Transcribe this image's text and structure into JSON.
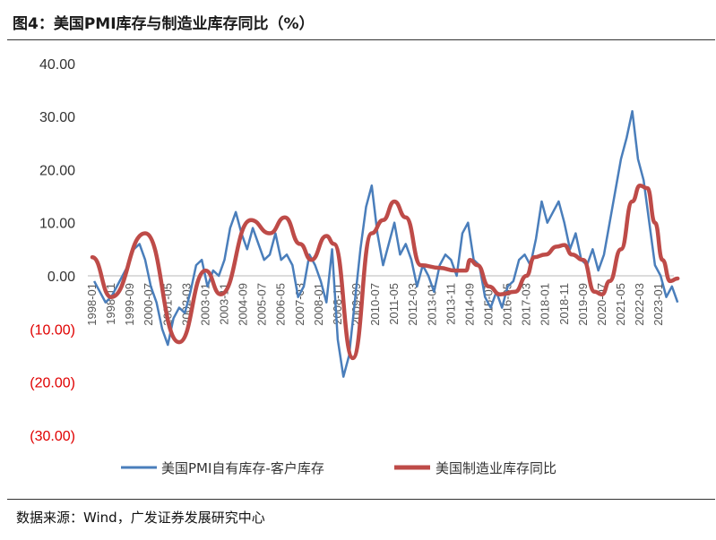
{
  "header": {
    "title": "图4：美国PMI库存与制造业库存同比（%）"
  },
  "footer": {
    "source": "数据来源：Wind，广发证券发展研究中心"
  },
  "chart_data": {
    "type": "line",
    "title": "美国PMI库存与制造业库存同比（%）",
    "ylim": [
      -30,
      40
    ],
    "yticks": [
      "40.00",
      "30.00",
      "20.00",
      "10.00",
      "0.00",
      "(10.00)",
      "(20.00)",
      "(30.00)"
    ],
    "ytick_values": [
      40,
      30,
      20,
      10,
      0,
      -10,
      -20,
      -30
    ],
    "xticks": [
      "1998-01",
      "1998-11",
      "1999-09",
      "2000-07",
      "2001-05",
      "2002-03",
      "2003-01",
      "2003-11",
      "2004-09",
      "2005-07",
      "2006-05",
      "2007-03",
      "2008-01",
      "2008-11",
      "2009-09",
      "2010-07",
      "2011-05",
      "2012-03",
      "2013-01",
      "2013-11",
      "2014-09",
      "2015-07",
      "2016-05",
      "2017-03",
      "2018-01",
      "2018-11",
      "2019-09",
      "2020-07",
      "2021-05",
      "2022-03",
      "2023-01"
    ],
    "legend_position": "bottom",
    "negative_color": "#e00000",
    "series": [
      {
        "name": "美国PMI自有库存-客户库存",
        "color": "#4a7ebb",
        "frequency": "quarterly",
        "start": "1998-01",
        "values": [
          -1,
          -3,
          -5,
          -4,
          -2,
          0,
          2,
          5,
          6,
          3,
          -2,
          -5,
          -10,
          -13,
          -8,
          -6,
          -7,
          -3,
          2,
          3,
          -2,
          1,
          0,
          3,
          9,
          12,
          8,
          5,
          9,
          6,
          3,
          4,
          8,
          3,
          4,
          2,
          -4,
          -2,
          4,
          2,
          -1,
          -5,
          5,
          -12,
          -19,
          -15,
          -5,
          5,
          13,
          17,
          8,
          2,
          6,
          10,
          4,
          6,
          3,
          -2,
          2,
          0,
          -3,
          2,
          4,
          3,
          0,
          8,
          10,
          3,
          2,
          -4,
          -6,
          -3,
          -6,
          -2,
          -1,
          3,
          4,
          2,
          7,
          14,
          10,
          12,
          14,
          10,
          5,
          8,
          3,
          2,
          5,
          1,
          4,
          10,
          16,
          22,
          26,
          31,
          22,
          18,
          10,
          2,
          0,
          -4,
          -2,
          -5
        ]
      },
      {
        "name": "美国制造业库存同比",
        "color": "#be4b48",
        "frequency": "monthly-keypoints",
        "points": [
          [
            "1998-01",
            3.5
          ],
          [
            "1998-11",
            -4
          ],
          [
            "2000-05",
            8
          ],
          [
            "2001-11",
            -12.5
          ],
          [
            "2003-01",
            1
          ],
          [
            "2003-09",
            -3.5
          ],
          [
            "2005-01",
            10.5
          ],
          [
            "2005-11",
            8
          ],
          [
            "2006-07",
            11
          ],
          [
            "2007-03",
            6
          ],
          [
            "2007-09",
            3
          ],
          [
            "2008-05",
            7.5
          ],
          [
            "2008-09",
            6
          ],
          [
            "2009-07",
            -15.5
          ],
          [
            "2010-05",
            8
          ],
          [
            "2010-11",
            10.5
          ],
          [
            "2011-05",
            14
          ],
          [
            "2011-11",
            11
          ],
          [
            "2012-07",
            2
          ],
          [
            "2013-05",
            1.5
          ],
          [
            "2014-01",
            1
          ],
          [
            "2014-07",
            1
          ],
          [
            "2014-09",
            3
          ],
          [
            "2015-01",
            2
          ],
          [
            "2015-07",
            -2
          ],
          [
            "2016-01",
            -3.5
          ],
          [
            "2016-09",
            -3
          ],
          [
            "2017-03",
            0
          ],
          [
            "2017-07",
            3.5
          ],
          [
            "2018-01",
            4
          ],
          [
            "2018-07",
            5.5
          ],
          [
            "2018-11",
            5.8
          ],
          [
            "2019-03",
            4
          ],
          [
            "2019-09",
            3
          ],
          [
            "2020-03",
            -3
          ],
          [
            "2020-07",
            -3.5
          ],
          [
            "2020-11",
            -1
          ],
          [
            "2021-05",
            5
          ],
          [
            "2021-11",
            14
          ],
          [
            "2022-03",
            17
          ],
          [
            "2022-07",
            16.5
          ],
          [
            "2022-11",
            10
          ],
          [
            "2023-03",
            3
          ],
          [
            "2023-07",
            -1
          ],
          [
            "2023-11",
            -0.5
          ]
        ]
      }
    ]
  }
}
